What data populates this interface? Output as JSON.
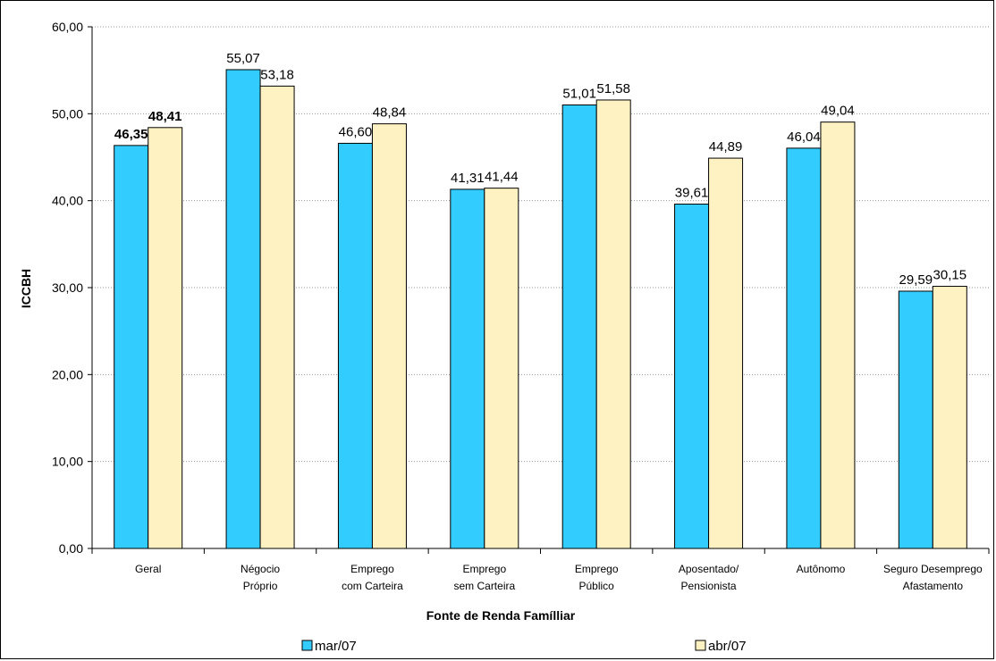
{
  "chart_data": {
    "type": "bar",
    "categories": [
      [
        "Geral"
      ],
      [
        "Négocio",
        "Próprio"
      ],
      [
        "Emprego",
        "com Carteira"
      ],
      [
        "Emprego",
        "sem Carteira"
      ],
      [
        "Emprego",
        "Público"
      ],
      [
        "Aposentado/",
        "Pensionista"
      ],
      [
        "Autônomo"
      ],
      [
        "Seguro Desemprego",
        "Afastamento"
      ]
    ],
    "series": [
      {
        "name": "mar/07",
        "color": "#33CCFF",
        "values": [
          46.35,
          55.07,
          46.6,
          41.31,
          51.01,
          39.61,
          46.04,
          29.59
        ],
        "labels": [
          "46,35",
          "55,07",
          "46,60",
          "41,31",
          "51,01",
          "39,61",
          "46,04",
          "29,59"
        ]
      },
      {
        "name": "abr/07",
        "color": "#FFF2C2",
        "values": [
          48.41,
          53.18,
          48.84,
          41.44,
          51.58,
          44.89,
          49.04,
          30.15
        ],
        "labels": [
          "48,41",
          "53,18",
          "48,84",
          "41,44",
          "51,58",
          "44,89",
          "49,04",
          "30,15"
        ]
      }
    ],
    "bold_label_category_index": 0,
    "xlabel": "Fonte de Renda Famílliar",
    "ylabel": "ICCBH",
    "ylim": [
      0,
      60
    ],
    "yticks": [
      0,
      10,
      20,
      30,
      40,
      50,
      60
    ],
    "ytick_labels": [
      "0,00",
      "10,00",
      "20,00",
      "30,00",
      "40,00",
      "50,00",
      "60,00"
    ],
    "grid": true,
    "legend_position": "bottom"
  }
}
